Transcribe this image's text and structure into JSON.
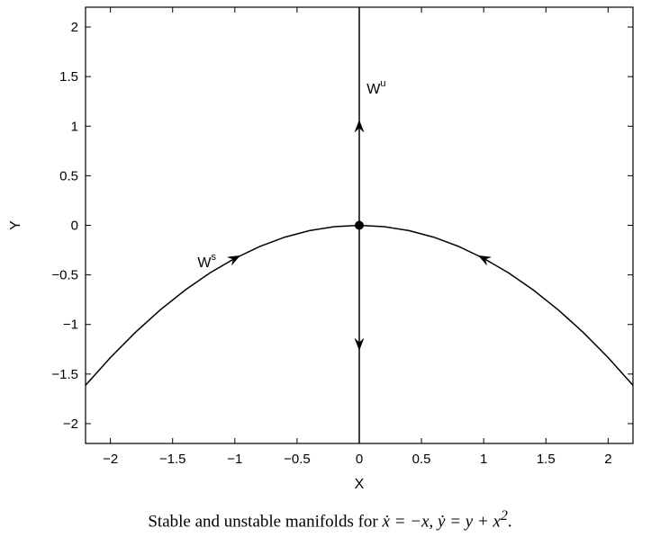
{
  "chart_data": {
    "type": "line",
    "xlabel": "X",
    "ylabel": "Y",
    "xlim": [
      -2.2,
      2.2
    ],
    "ylim": [
      -2.2,
      2.2
    ],
    "xticks": [
      -2,
      -1.5,
      -1,
      -0.5,
      0,
      0.5,
      1,
      1.5,
      2
    ],
    "yticks": [
      -2,
      -1.5,
      -1,
      -0.5,
      0,
      0.5,
      1,
      1.5,
      2
    ],
    "xtick_labels": [
      "−2",
      "−1.5",
      "−1",
      "−0.5",
      "0",
      "0.5",
      "1",
      "1.5",
      "2"
    ],
    "ytick_labels": [
      "−2",
      "−1.5",
      "−1",
      "−0.5",
      "0",
      "0.5",
      "1",
      "1.5",
      "2"
    ],
    "grid": false,
    "series": [
      {
        "name": "W^s",
        "label_base": "W",
        "label_sup": "s",
        "label_at": [
          -1.3,
          -0.42
        ],
        "equation": "y = -x^2/3",
        "x": [
          -2.2,
          -2.0,
          -1.8,
          -1.6,
          -1.4,
          -1.2,
          -1.0,
          -0.8,
          -0.6,
          -0.4,
          -0.2,
          0,
          0.2,
          0.4,
          0.6,
          0.8,
          1.0,
          1.2,
          1.4,
          1.6,
          1.8,
          2.0,
          2.2
        ],
        "y": [
          -1.6133,
          -1.3333,
          -1.08,
          -0.8533,
          -0.6533,
          -0.48,
          -0.3333,
          -0.2133,
          -0.12,
          -0.0533,
          -0.0133,
          0,
          -0.0133,
          -0.0533,
          -0.12,
          -0.2133,
          -0.3333,
          -0.48,
          -0.6533,
          -0.8533,
          -1.08,
          -1.3333,
          -1.6133
        ],
        "arrows": [
          {
            "x": -1.0,
            "direction": "toward-origin"
          },
          {
            "x": 1.0,
            "direction": "toward-origin"
          }
        ]
      },
      {
        "name": "W^u",
        "label_base": "W",
        "label_sup": "u",
        "label_at": [
          0.06,
          1.33
        ],
        "equation": "x = 0",
        "x": [
          0,
          0
        ],
        "y": [
          -2.2,
          2.2
        ],
        "arrows": [
          {
            "y": 1.0,
            "direction": "away-from-origin"
          },
          {
            "y": -1.2,
            "direction": "away-from-origin"
          }
        ]
      }
    ],
    "points": [
      {
        "x": 0,
        "y": 0
      }
    ]
  },
  "caption": {
    "text": "Stable and unstable manifolds for",
    "eq1_lhs": "ẋ",
    "eq1_rhs": " = −x,",
    "eq2_lhs": "ẏ",
    "eq2_rhs": " = y + x",
    "eq2_sup": "2",
    "end": "."
  }
}
